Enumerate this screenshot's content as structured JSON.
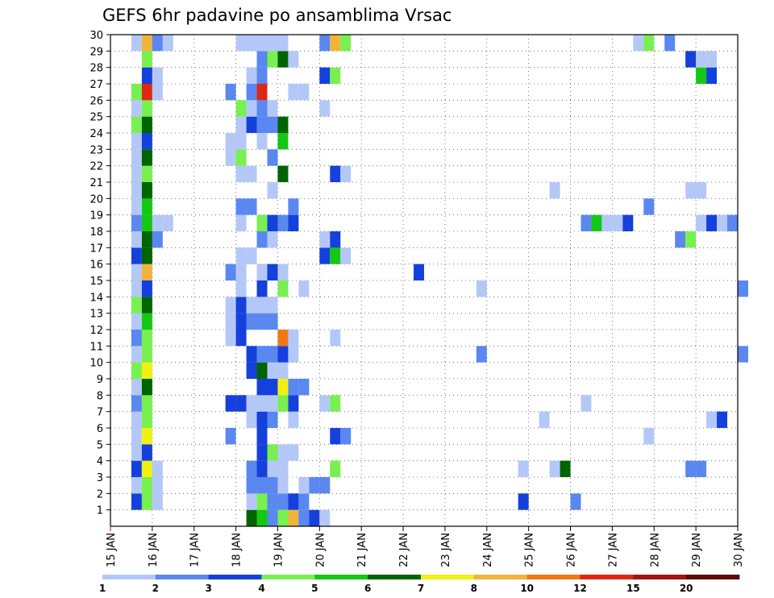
{
  "chart_data": {
    "type": "heatmap",
    "title": "GEFS 6hr padavine po ansamblima Vrsac",
    "x_ticks": [
      "15 JAN",
      "16 JAN",
      "17 JAN",
      "18 JAN",
      "19 JAN",
      "20 JAN",
      "21 JAN",
      "22 JAN",
      "23 JAN",
      "24 JAN",
      "25 JAN",
      "26 JAN",
      "27 JAN",
      "28 JAN",
      "29 JAN",
      "30 JAN"
    ],
    "y_ticks": [
      "1",
      "2",
      "3",
      "4",
      "5",
      "6",
      "7",
      "8",
      "9",
      "10",
      "11",
      "12",
      "13",
      "14",
      "15",
      "16",
      "17",
      "18",
      "19",
      "20",
      "21",
      "22",
      "23",
      "24",
      "25",
      "26",
      "27",
      "28",
      "29",
      "30"
    ],
    "x_range_days": [
      0,
      15
    ],
    "y_range": [
      0,
      30
    ],
    "time_step_hours": 6,
    "grid": "dotted",
    "legend": {
      "labels": [
        "1",
        "2",
        "3",
        "4",
        "5",
        "6",
        "7",
        "8",
        "10",
        "12",
        "15",
        "20"
      ],
      "colors": [
        "#b4c8f8",
        "#5a87f0",
        "#1440dc",
        "#78f050",
        "#14c814",
        "#006400",
        "#f0f014",
        "#f0b43c",
        "#f07814",
        "#dc2814",
        "#a01414",
        "#5a0a0a"
      ]
    },
    "ensemble_members": [
      {
        "member": 1,
        "cells": [
          [
            3.25,
            6
          ],
          [
            3.5,
            5
          ],
          [
            3.75,
            2
          ],
          [
            4,
            4
          ],
          [
            4.25,
            8
          ],
          [
            4.5,
            2
          ],
          [
            4.75,
            3
          ],
          [
            5,
            1
          ]
        ]
      },
      {
        "member": 2,
        "cells": [
          [
            0.5,
            3
          ],
          [
            0.75,
            4
          ],
          [
            1,
            1
          ],
          [
            3.25,
            1
          ],
          [
            3.5,
            4
          ],
          [
            3.75,
            2
          ],
          [
            4,
            2
          ],
          [
            4.25,
            3
          ],
          [
            4.5,
            2
          ],
          [
            9.75,
            3
          ],
          [
            11,
            2
          ]
        ]
      },
      {
        "member": 3,
        "cells": [
          [
            0.5,
            1
          ],
          [
            0.75,
            4
          ],
          [
            1,
            1
          ],
          [
            3.25,
            2
          ],
          [
            3.5,
            2
          ],
          [
            3.75,
            2
          ],
          [
            4,
            1
          ],
          [
            4.5,
            1
          ],
          [
            4.75,
            2
          ],
          [
            5,
            2
          ]
        ]
      },
      {
        "member": 4,
        "cells": [
          [
            0.5,
            3
          ],
          [
            0.75,
            7
          ],
          [
            1,
            1
          ],
          [
            3.25,
            2
          ],
          [
            3.5,
            3
          ],
          [
            3.75,
            1
          ],
          [
            4,
            1
          ],
          [
            5.25,
            4
          ],
          [
            9.75,
            1
          ],
          [
            10.5,
            1
          ],
          [
            10.75,
            6
          ],
          [
            13.75,
            2
          ],
          [
            14,
            2
          ]
        ]
      },
      {
        "member": 5,
        "cells": [
          [
            0.5,
            1
          ],
          [
            0.75,
            3
          ],
          [
            3.5,
            3
          ],
          [
            3.75,
            4
          ],
          [
            4,
            1
          ],
          [
            4.25,
            1
          ]
        ]
      },
      {
        "member": 6,
        "cells": [
          [
            0.5,
            1
          ],
          [
            0.75,
            7
          ],
          [
            2.75,
            2
          ],
          [
            3.5,
            3
          ],
          [
            5.25,
            3
          ],
          [
            5.5,
            2
          ],
          [
            12.75,
            1
          ]
        ]
      },
      {
        "member": 7,
        "cells": [
          [
            0.5,
            1
          ],
          [
            0.75,
            4
          ],
          [
            3.25,
            1
          ],
          [
            3.5,
            3
          ],
          [
            3.75,
            2
          ],
          [
            4.25,
            1
          ],
          [
            10.25,
            1
          ],
          [
            14.25,
            1
          ],
          [
            14.5,
            3
          ]
        ]
      },
      {
        "member": 8,
        "cells": [
          [
            0.5,
            2
          ],
          [
            0.75,
            4
          ],
          [
            2.75,
            3
          ],
          [
            3,
            3
          ],
          [
            3.25,
            1
          ],
          [
            3.5,
            1
          ],
          [
            3.75,
            1
          ],
          [
            4,
            4
          ],
          [
            4.25,
            3
          ],
          [
            5,
            1
          ],
          [
            5.25,
            4
          ],
          [
            11.25,
            1
          ]
        ]
      },
      {
        "member": 9,
        "cells": [
          [
            0.5,
            1
          ],
          [
            0.75,
            6
          ],
          [
            3.5,
            3
          ],
          [
            3.75,
            3
          ],
          [
            4,
            7
          ],
          [
            4.25,
            2
          ],
          [
            4.5,
            2
          ]
        ]
      },
      {
        "member": 10,
        "cells": [
          [
            0.5,
            4
          ],
          [
            0.75,
            7
          ],
          [
            3.25,
            3
          ],
          [
            3.5,
            6
          ],
          [
            3.75,
            1
          ],
          [
            4,
            1
          ]
        ]
      },
      {
        "member": 11,
        "cells": [
          [
            0.5,
            1
          ],
          [
            0.75,
            4
          ],
          [
            3.25,
            3
          ],
          [
            3.5,
            2
          ],
          [
            3.75,
            2
          ],
          [
            4,
            3
          ],
          [
            4.25,
            1
          ],
          [
            8.75,
            2
          ],
          [
            15,
            2
          ]
        ]
      },
      {
        "member": 12,
        "cells": [
          [
            0.5,
            2
          ],
          [
            0.75,
            4
          ],
          [
            2.75,
            1
          ],
          [
            3,
            3
          ],
          [
            4,
            9
          ],
          [
            4.25,
            1
          ],
          [
            5.25,
            1
          ]
        ]
      },
      {
        "member": 13,
        "cells": [
          [
            0.5,
            1
          ],
          [
            0.75,
            5
          ],
          [
            2.75,
            1
          ],
          [
            3,
            3
          ],
          [
            3.25,
            2
          ],
          [
            3.5,
            2
          ],
          [
            3.75,
            2
          ]
        ]
      },
      {
        "member": 14,
        "cells": [
          [
            0.5,
            4
          ],
          [
            0.75,
            6
          ],
          [
            2.75,
            1
          ],
          [
            3,
            3
          ],
          [
            3.25,
            1
          ],
          [
            3.5,
            1
          ],
          [
            3.75,
            1
          ]
        ]
      },
      {
        "member": 15,
        "cells": [
          [
            0.5,
            1
          ],
          [
            0.75,
            3
          ],
          [
            3,
            1
          ],
          [
            3.5,
            3
          ],
          [
            4,
            4
          ],
          [
            4.5,
            1
          ],
          [
            8.75,
            1
          ],
          [
            15,
            2
          ]
        ]
      },
      {
        "member": 16,
        "cells": [
          [
            0.5,
            1
          ],
          [
            0.75,
            8
          ],
          [
            2.75,
            2
          ],
          [
            3,
            1
          ],
          [
            3.5,
            1
          ],
          [
            3.75,
            3
          ],
          [
            4,
            1
          ],
          [
            7.25,
            3
          ]
        ]
      },
      {
        "member": 17,
        "cells": [
          [
            0.5,
            3
          ],
          [
            0.75,
            6
          ],
          [
            3,
            1
          ],
          [
            3.25,
            1
          ],
          [
            5,
            3
          ],
          [
            5.25,
            5
          ],
          [
            5.5,
            1
          ]
        ]
      },
      {
        "member": 18,
        "cells": [
          [
            0.5,
            1
          ],
          [
            0.75,
            6
          ],
          [
            1,
            2
          ],
          [
            3.5,
            2
          ],
          [
            3.75,
            1
          ],
          [
            5,
            1
          ],
          [
            5.25,
            3
          ],
          [
            13.5,
            2
          ],
          [
            13.75,
            4
          ]
        ]
      },
      {
        "member": 19,
        "cells": [
          [
            0.5,
            2
          ],
          [
            0.75,
            5
          ],
          [
            1,
            1
          ],
          [
            1.25,
            1
          ],
          [
            3,
            1
          ],
          [
            3.5,
            4
          ],
          [
            3.75,
            3
          ],
          [
            4,
            2
          ],
          [
            4.25,
            3
          ],
          [
            11.25,
            2
          ],
          [
            11.5,
            5
          ],
          [
            11.75,
            1
          ],
          [
            12,
            1
          ],
          [
            12.25,
            3
          ],
          [
            14,
            1
          ],
          [
            14.25,
            3
          ],
          [
            14.5,
            1
          ],
          [
            14.75,
            2
          ]
        ]
      },
      {
        "member": 20,
        "cells": [
          [
            0.5,
            1
          ],
          [
            0.75,
            5
          ],
          [
            3,
            2
          ],
          [
            3.25,
            2
          ],
          [
            4.25,
            2
          ],
          [
            12.75,
            2
          ]
        ]
      },
      {
        "member": 21,
        "cells": [
          [
            0.5,
            1
          ],
          [
            0.75,
            6
          ],
          [
            3.75,
            1
          ],
          [
            10.5,
            1
          ],
          [
            13.75,
            1
          ],
          [
            14,
            1
          ]
        ]
      },
      {
        "member": 22,
        "cells": [
          [
            0.5,
            1
          ],
          [
            0.75,
            4
          ],
          [
            3,
            1
          ],
          [
            3.25,
            1
          ],
          [
            4,
            6
          ],
          [
            5.25,
            3
          ],
          [
            5.5,
            1
          ]
        ]
      },
      {
        "member": 23,
        "cells": [
          [
            0.5,
            1
          ],
          [
            0.75,
            6
          ],
          [
            2.75,
            1
          ],
          [
            3,
            4
          ],
          [
            3.75,
            2
          ]
        ]
      },
      {
        "member": 24,
        "cells": [
          [
            0.5,
            1
          ],
          [
            0.75,
            3
          ],
          [
            2.75,
            1
          ],
          [
            3,
            1
          ],
          [
            3.5,
            1
          ],
          [
            4,
            5
          ]
        ]
      },
      {
        "member": 25,
        "cells": [
          [
            0.5,
            4
          ],
          [
            0.75,
            6
          ],
          [
            3,
            1
          ],
          [
            3.25,
            3
          ],
          [
            3.5,
            2
          ],
          [
            3.75,
            2
          ],
          [
            4,
            6
          ]
        ]
      },
      {
        "member": 26,
        "cells": [
          [
            0.5,
            1
          ],
          [
            0.75,
            4
          ],
          [
            3,
            4
          ],
          [
            3.25,
            1
          ],
          [
            3.5,
            2
          ],
          [
            3.75,
            1
          ],
          [
            5,
            1
          ]
        ]
      },
      {
        "member": 27,
        "cells": [
          [
            0.5,
            4
          ],
          [
            0.75,
            10
          ],
          [
            1,
            1
          ],
          [
            2.75,
            2
          ],
          [
            3.25,
            2
          ],
          [
            3.5,
            10
          ],
          [
            4.25,
            1
          ],
          [
            4.5,
            1
          ]
        ]
      },
      {
        "member": 28,
        "cells": [
          [
            0.75,
            3
          ],
          [
            1,
            1
          ],
          [
            3.25,
            1
          ],
          [
            3.5,
            2
          ],
          [
            5,
            3
          ],
          [
            5.25,
            4
          ],
          [
            14,
            5
          ],
          [
            14.25,
            3
          ]
        ]
      },
      {
        "member": 29,
        "cells": [
          [
            0.75,
            4
          ],
          [
            3.5,
            2
          ],
          [
            3.75,
            4
          ],
          [
            4,
            6
          ],
          [
            4.25,
            1
          ],
          [
            13.75,
            3
          ],
          [
            14,
            1
          ],
          [
            14.25,
            1
          ]
        ]
      },
      {
        "member": 30,
        "cells": [
          [
            0.5,
            1
          ],
          [
            0.75,
            8
          ],
          [
            1,
            2
          ],
          [
            1.25,
            1
          ],
          [
            3,
            1
          ],
          [
            3.25,
            1
          ],
          [
            3.5,
            1
          ],
          [
            3.75,
            1
          ],
          [
            4,
            1
          ],
          [
            5,
            2
          ],
          [
            5.25,
            8
          ],
          [
            5.5,
            4
          ],
          [
            12.5,
            1
          ],
          [
            12.75,
            4
          ],
          [
            13.25,
            2
          ]
        ]
      }
    ]
  }
}
